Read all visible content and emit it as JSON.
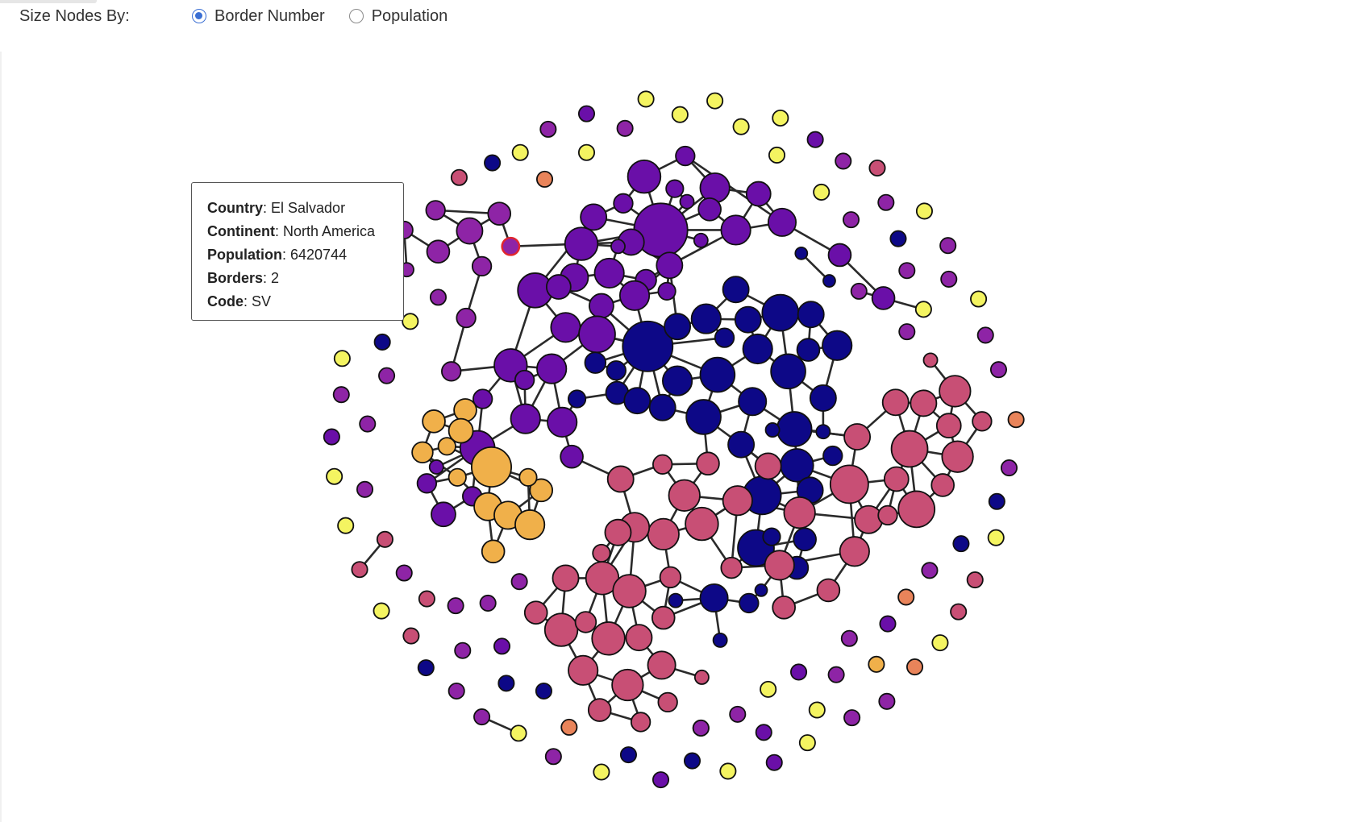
{
  "controls": {
    "label": "Size Nodes By:",
    "options": [
      {
        "label": "Border Number",
        "checked": true
      },
      {
        "label": "Population",
        "checked": false
      }
    ]
  },
  "tooltip": {
    "rows": [
      {
        "key": "Country",
        "value": "El Salvador"
      },
      {
        "key": "Continent",
        "value": "North America"
      },
      {
        "key": "Population",
        "value": "6420744"
      },
      {
        "key": "Borders",
        "value": "2"
      },
      {
        "key": "Code",
        "value": "SV"
      }
    ]
  },
  "colors": {
    "asia": "#6a0fa8",
    "africa": "#0d0887",
    "europe": "#c84f75",
    "south_america": "#f0b04a",
    "north_america": "#8e24a6",
    "oceania": "#f4f461",
    "antarctica": "#e9845a",
    "stroke": "#111111",
    "highlight": "#e0262d"
  }
}
